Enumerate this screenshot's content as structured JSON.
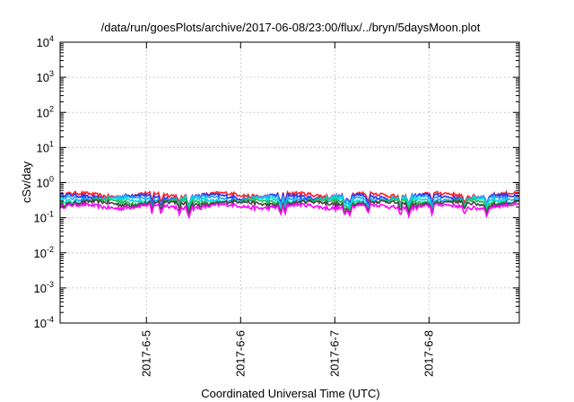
{
  "chart_data": {
    "type": "line",
    "title": "/data/run/goesPlots/archive/2017-06-08/23:00/flux/../bryn/5daysMoon.plot",
    "xlabel": "Coordinated Universal Time (UTC)",
    "ylabel": "cSv/day",
    "yscale": "log",
    "ylim": [
      0.0001,
      10000
    ],
    "xlim": [
      "2017-06-04 02:00",
      "2017-06-08 23:00"
    ],
    "grid": true,
    "legend": "none",
    "y_ticks": [
      {
        "value": 0.0001,
        "base": "10",
        "exp": "-4"
      },
      {
        "value": 0.001,
        "base": "10",
        "exp": "-3"
      },
      {
        "value": 0.01,
        "base": "10",
        "exp": "-2"
      },
      {
        "value": 0.1,
        "base": "10",
        "exp": "-1"
      },
      {
        "value": 1,
        "base": "10",
        "exp": "0"
      },
      {
        "value": 10,
        "base": "10",
        "exp": "1"
      },
      {
        "value": 100,
        "base": "10",
        "exp": "2"
      },
      {
        "value": 1000,
        "base": "10",
        "exp": "3"
      },
      {
        "value": 10000,
        "base": "10",
        "exp": "4"
      }
    ],
    "x_ticks": [
      {
        "value": "2017-06-05 00:00",
        "label": "2017-6-5"
      },
      {
        "value": "2017-06-06 00:00",
        "label": "2017-6-6"
      },
      {
        "value": "2017-06-07 00:00",
        "label": "2017-6-7"
      },
      {
        "value": "2017-06-08 00:00",
        "label": "2017-6-8"
      }
    ],
    "series": [
      {
        "color": "#ff2222",
        "level": 0.45
      },
      {
        "color": "#2233ff",
        "level": 0.4
      },
      {
        "color": "#22aaff",
        "level": 0.36
      },
      {
        "color": "#00dddd",
        "level": 0.32
      },
      {
        "color": "#22bb55",
        "level": 0.29
      },
      {
        "color": "#444444",
        "level": 0.26
      },
      {
        "color": "#ff00ff",
        "level": 0.21
      }
    ]
  }
}
